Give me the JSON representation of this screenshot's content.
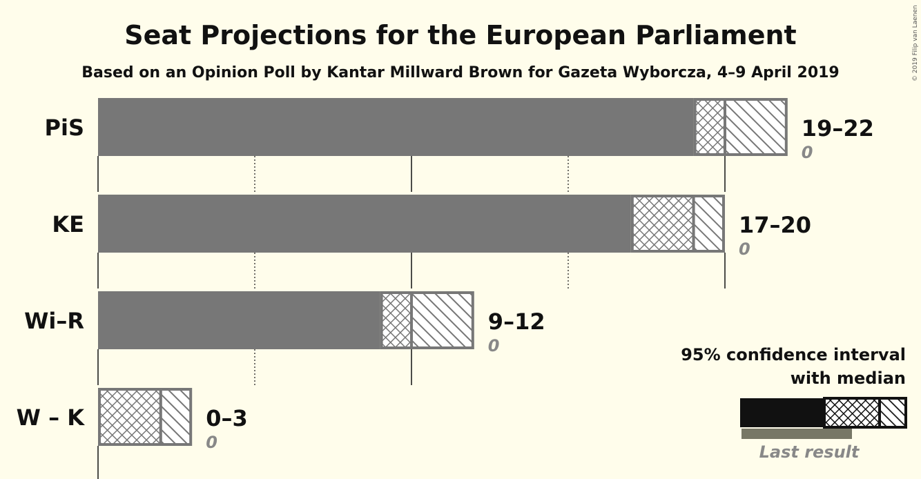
{
  "chart_data": {
    "type": "bar",
    "title": "Seat Projections for the European Parliament",
    "subtitle": "Based on an Opinion Poll by Kantar Millward Brown for Gazeta Wyborcza, 4–9 April 2019",
    "categories": [
      "PiS",
      "KE",
      "Wi–R",
      "W – K"
    ],
    "ci_low": [
      19,
      17,
      9,
      0
    ],
    "median": [
      20,
      19,
      10,
      2
    ],
    "ci_high": [
      22,
      20,
      12,
      3
    ],
    "range_labels": [
      "19–22",
      "17–20",
      "9–12",
      "0–3"
    ],
    "last_result": [
      0,
      0,
      0,
      0
    ],
    "last_result_labels": [
      "0",
      "0",
      "0",
      "0"
    ],
    "xlim": [
      0,
      22
    ],
    "gridlines": [
      5,
      10,
      15,
      20
    ],
    "colors": {
      "bar": "#777777",
      "background": "#fffdeb",
      "legend_bar": "#111111",
      "legend_last": "#777766"
    }
  },
  "legend": {
    "line1": "95% confidence interval",
    "line2": "with median",
    "last_result_label": "Last result"
  },
  "copyright": "© 2019 Filip van Laenen"
}
